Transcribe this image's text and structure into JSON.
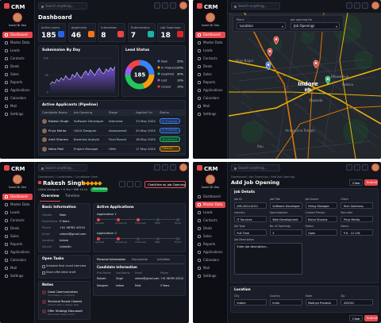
{
  "sidebar": {
    "brand": "CRM",
    "user": "Israel Di Seo",
    "nav": [
      "Dashboard",
      "Master Data",
      "Leads",
      "Contacts",
      "Deals",
      "Sales",
      "Reports",
      "Applications",
      "Calendars",
      "Mail",
      "Settings"
    ]
  },
  "topbar": {
    "search": "Search anything..."
  },
  "dashboard": {
    "title": "Dashboard",
    "stats": [
      {
        "label": "Active users",
        "value": 185,
        "color": "#2563eb"
      },
      {
        "label": "Applicants",
        "value": 46,
        "color": "#f97316"
      },
      {
        "label": "Interviews",
        "value": 8,
        "color": "#ef4444"
      },
      {
        "label": "Submissions",
        "value": 7,
        "color": "#14b8a6"
      },
      {
        "label": "Job Openings",
        "value": 18,
        "color": "#dc2626"
      }
    ],
    "submissions": {
      "title": "Submission By Day",
      "color": "#8b5cf6",
      "values": [
        22,
        30,
        26,
        38,
        31,
        42,
        35,
        48,
        40,
        36,
        52,
        44,
        58,
        47,
        41,
        55,
        62,
        50,
        66,
        57,
        49,
        63,
        70,
        58,
        54,
        68,
        61,
        72,
        64,
        75
      ],
      "ylim": [
        0,
        100
      ],
      "yticks": [
        0,
        50,
        100
      ]
    },
    "lead_status": {
      "title": "Lead Status",
      "total": 185,
      "segments": [
        {
          "name": "New",
          "value": 25,
          "value_label": "25%",
          "color": "#3b82f6"
        },
        {
          "name": "In Progress",
          "value": 20,
          "value_label": "20%",
          "color": "#f59e0b"
        },
        {
          "name": "Qualified",
          "value": 30,
          "value_label": "30%",
          "color": "#22c55e"
        },
        {
          "name": "Lost",
          "value": 10,
          "value_label": "10%",
          "color": "#a855f7"
        },
        {
          "name": "Closed",
          "value": 15,
          "value_label": "15%",
          "color": "#ef4444"
        }
      ]
    },
    "pipeline": {
      "title": "Active Applicants (Pipeline)",
      "columns": [
        "Candidate Name",
        "Job Opening",
        "Stage",
        "Applied On",
        "Status"
      ],
      "rows": [
        [
          "Rakesh Singh",
          "Software Developer",
          "Interview",
          "23 May 2024",
          "In Progress"
        ],
        [
          "Priya Mehta",
          "UI/UX Designer",
          "Assessment",
          "20 May 2024",
          "In Progress"
        ],
        [
          "Amit Sharma",
          "Business Analyst",
          "Final Round",
          "18 May 2024",
          "Shortlisted"
        ],
        [
          "Neha Patil",
          "Project Manager",
          "Offer",
          "17 May 2024",
          "Offered"
        ]
      ],
      "status_colors": [
        "#3b82f6",
        "#3b82f6",
        "#22c55e",
        "#f59e0b"
      ]
    }
  },
  "map_view": {
    "filters": [
      {
        "label": "Place",
        "value": "Location"
      },
      {
        "label": "Job opening for",
        "value": "Job Openings"
      }
    ],
    "places": [
      "Indore",
      "इंदौर",
      "Vijay Nagar",
      "Annapurna Temple",
      "Rajwada",
      "Bhawarkua",
      "Palasia",
      "Rau"
    ]
  },
  "candidate": {
    "breadcrumb": "Dashboard / Candidates / Candidate View",
    "name": "Rakesh Singh",
    "headline": "UI/UX Designer • 5 Yrs • INR 10 Lk",
    "badge": "Shortlisted",
    "action": "Chat/Hire as Job Opening",
    "tabs": [
      "Overview",
      "Timeline"
    ],
    "basic": {
      "title": "Basic Information",
      "fields": [
        [
          "Gender",
          "Male"
        ],
        [
          "Experience",
          "5 Years"
        ],
        [
          "Phone",
          "+91 98765 43210"
        ],
        [
          "Email",
          "rakesh@gmail.com"
        ],
        [
          "Location",
          "Indore"
        ],
        [
          "Source",
          "LinkedIn"
        ]
      ]
    },
    "applications": {
      "title": "Active Applications",
      "items": [
        "Application 1",
        "Application 2"
      ],
      "steps": [
        "Applied",
        "Screening",
        "Interview",
        "Offer",
        "Hired"
      ]
    },
    "tasks": {
      "title": "Open Tasks",
      "items": [
        "Schedule final round interview",
        "Share offer letter draft"
      ]
    },
    "notes": {
      "title": "Notes",
      "items": [
        [
          "Good Communication",
          "Candidate is confident."
        ],
        [
          "Technical Round Cleared",
          "Scored well in design task."
        ],
        [
          "Offer Strategy Discussed",
          "Discussed salary band."
        ]
      ]
    },
    "info": {
      "title": "Candidate Information",
      "tabs": [
        "Personal Information",
        "Documents",
        "Activities"
      ],
      "columns": [
        "First Name",
        "Last Name",
        "Email",
        "Phone"
      ],
      "rows": [
        [
          "Rakesh",
          "Singh",
          "rakesh@gmail.com",
          "+91 98765 43210"
        ],
        [
          "Designer",
          "Indore",
          "Male",
          "5 Years"
        ]
      ]
    }
  },
  "job_form": {
    "breadcrumb": "Dashboard / Job Openings / Add Job Opening",
    "title": "Add Job Opening",
    "buttons": [
      "Clear",
      "Submit"
    ],
    "details": {
      "title": "Job Details",
      "fields": [
        [
          "Job ID",
          "JOB-2024-0012"
        ],
        [
          "Job Title",
          "Software Developer"
        ],
        [
          "Job Owner",
          "Hiring Manager"
        ],
        [
          "Client",
          "Tech Solutions"
        ],
        [
          "Industry",
          "IT Services"
        ],
        [
          "Specialization",
          "Web Development"
        ],
        [
          "Contact Person",
          "Rahul Sharma"
        ],
        [
          "Recruiter",
          "Priya Mehta"
        ],
        [
          "Job Type",
          "Full Time"
        ],
        [
          "No. of Openings",
          "3"
        ],
        [
          "Status",
          "Open"
        ],
        [
          "Salary",
          "₹ 8 - 12 LPA"
        ]
      ],
      "description": [
        "Job Description",
        "Enter job description..."
      ]
    },
    "location": {
      "title": "Location",
      "fields": [
        [
          "City",
          "Indore"
        ],
        [
          "Country",
          "India"
        ],
        [
          "State",
          "Madhya Pradesh"
        ],
        [
          "Zip",
          "452001"
        ]
      ]
    }
  }
}
